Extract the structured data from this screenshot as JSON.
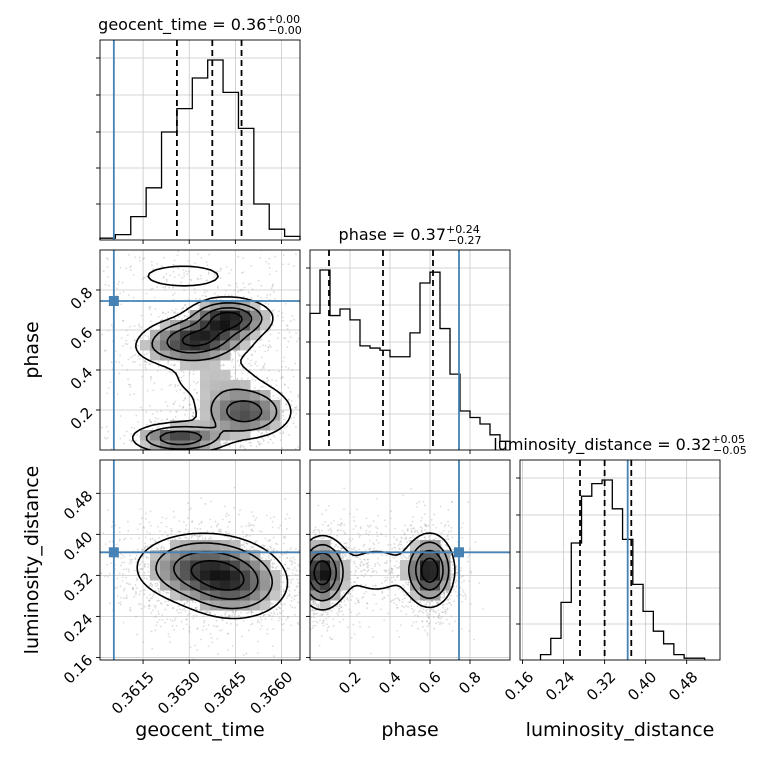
{
  "chart_data": {
    "type": "corner",
    "grid": true,
    "truth_color": "#4682b4",
    "hist_color": "#000000",
    "params": [
      {
        "name": "geocent_time",
        "title_main": "geocent_time = 0.36",
        "title_plus": "+0.00",
        "title_minus": "−0.00",
        "range": [
          0.3601,
          0.3666
        ],
        "ticks": [
          0.3615,
          0.363,
          0.3645,
          0.366
        ],
        "tick_labels": [
          "0.3615",
          "0.3630",
          "0.3645",
          "0.3660"
        ],
        "truth": 0.36055,
        "quantiles": [
          0.3626,
          0.36375,
          0.3647
        ],
        "bins": [
          0.3601,
          0.3606,
          0.3611,
          0.3616,
          0.3621,
          0.3626,
          0.3631,
          0.3636,
          0.3641,
          0.3646,
          0.3651,
          0.3656,
          0.3661,
          0.3666
        ],
        "hist": [
          0.01,
          0.03,
          0.13,
          0.29,
          0.6,
          0.73,
          0.9,
          1.0,
          0.82,
          0.62,
          0.2,
          0.06,
          0.02
        ]
      },
      {
        "name": "phase",
        "title_main": "phase = 0.37",
        "title_plus": "+0.24",
        "title_minus": "−0.27",
        "range": [
          0.0,
          1.0
        ],
        "ticks": [
          0.2,
          0.4,
          0.6,
          0.8
        ],
        "tick_labels": [
          "0.2",
          "0.4",
          "0.6",
          "0.8"
        ],
        "truth": 0.745,
        "quantiles": [
          0.095,
          0.365,
          0.615
        ],
        "bins": [
          0.0,
          0.05,
          0.1,
          0.15,
          0.2,
          0.25,
          0.3,
          0.35,
          0.4,
          0.45,
          0.5,
          0.55,
          0.6,
          0.65,
          0.7,
          0.75,
          0.8,
          0.85,
          0.9,
          0.95,
          1.0
        ],
        "hist": [
          0.63,
          0.83,
          0.62,
          0.65,
          0.6,
          0.48,
          0.47,
          0.46,
          0.43,
          0.43,
          0.54,
          0.77,
          0.82,
          0.56,
          0.35,
          0.18,
          0.15,
          0.12,
          0.07,
          0.04
        ]
      },
      {
        "name": "luminosity_distance",
        "title_main": "luminosity_distance = 0.32",
        "title_plus": "+0.05",
        "title_minus": "−0.05",
        "range": [
          0.155,
          0.545
        ],
        "ticks": [
          0.16,
          0.24,
          0.32,
          0.4,
          0.48
        ],
        "tick_labels": [
          "0.16",
          "0.24",
          "0.32",
          "0.40",
          "0.48"
        ],
        "truth": 0.365,
        "quantiles": [
          0.272,
          0.32,
          0.372
        ],
        "bins": [
          0.195,
          0.215,
          0.235,
          0.255,
          0.275,
          0.295,
          0.315,
          0.335,
          0.355,
          0.375,
          0.395,
          0.415,
          0.435,
          0.455,
          0.475,
          0.495,
          0.515
        ],
        "hist": [
          0.03,
          0.12,
          0.32,
          0.65,
          0.91,
          0.98,
          1.0,
          0.84,
          0.67,
          0.42,
          0.27,
          0.16,
          0.09,
          0.03,
          0.01,
          0.01
        ]
      }
    ],
    "panels_2d": [
      {
        "x": "geocent_time",
        "y": "phase",
        "clusters": [
          {
            "cx": 0.3633,
            "cy": 0.56,
            "sx": 0.0009,
            "sy": 0.055,
            "w": 0.22
          },
          {
            "cx": 0.3643,
            "cy": 0.66,
            "sx": 0.0007,
            "sy": 0.05,
            "w": 0.18
          },
          {
            "cx": 0.3648,
            "cy": 0.19,
            "sx": 0.0008,
            "sy": 0.07,
            "w": 0.22
          },
          {
            "cx": 0.3627,
            "cy": 0.06,
            "sx": 0.0008,
            "sy": 0.04,
            "w": 0.14
          },
          {
            "cx": 0.3638,
            "cy": 0.36,
            "sx": 0.0011,
            "sy": 0.08,
            "w": 0.1
          },
          {
            "cx": 0.3628,
            "cy": 0.87,
            "sx": 0.0014,
            "sy": 0.06,
            "w": 0.08
          },
          {
            "cx": 0.3626,
            "cy": 0.5,
            "sx": 0.0009,
            "sy": 0.05,
            "w": 0.06
          }
        ]
      },
      {
        "x": "geocent_time",
        "y": "luminosity_distance",
        "clusters": [
          {
            "cx": 0.3634,
            "cy": 0.335,
            "sx": 0.0011,
            "sy": 0.035,
            "w": 0.6
          },
          {
            "cx": 0.3645,
            "cy": 0.3,
            "sx": 0.0009,
            "sy": 0.035,
            "w": 0.4
          }
        ]
      },
      {
        "x": "phase",
        "y": "luminosity_distance",
        "clusters": [
          {
            "cx": 0.06,
            "cy": 0.325,
            "sx": 0.06,
            "sy": 0.035,
            "w": 0.4
          },
          {
            "cx": 0.6,
            "cy": 0.33,
            "sx": 0.06,
            "sy": 0.035,
            "w": 0.4
          },
          {
            "cx": 0.33,
            "cy": 0.33,
            "sx": 0.14,
            "sy": 0.04,
            "w": 0.2
          }
        ]
      }
    ]
  }
}
